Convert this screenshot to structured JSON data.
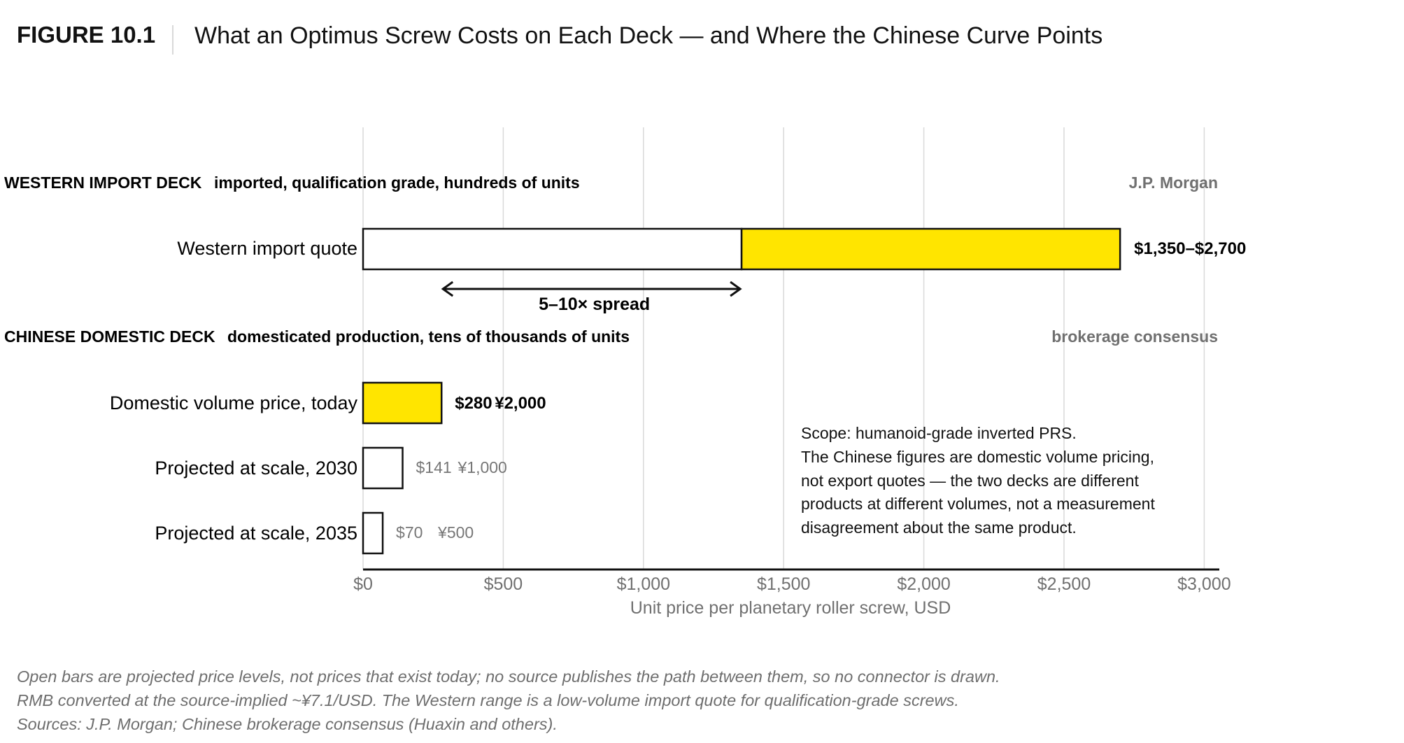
{
  "header": {
    "figure_label": "FIGURE 10.1",
    "title": "What an Optimus Screw Costs on Each Deck — and Where the Chinese Curve Points"
  },
  "chart_data": {
    "type": "bar",
    "orientation": "horizontal",
    "xlabel": "Unit price per planetary roller screw, USD",
    "xlim": [
      0,
      3050
    ],
    "x_ticks": [
      0,
      500,
      1000,
      1500,
      2000,
      2500,
      3000
    ],
    "x_tick_labels": [
      "$0",
      "$500",
      "$1,000",
      "$1,500",
      "$2,000",
      "$2,500",
      "$3,000"
    ],
    "grid": true,
    "decks": [
      {
        "title": "WESTERN IMPORT DECK",
        "subtitle": "imported, qualification grade, hundreds of units",
        "source": "J.P. Morgan",
        "bars": [
          {
            "label": "Western import quote",
            "kind": "range",
            "low": 1350,
            "high": 2700,
            "value_label": "$1,350–$2,700",
            "rmb_label": ""
          }
        ]
      },
      {
        "title": "CHINESE DOMESTIC DECK",
        "subtitle": "domesticated production, tens of thousands of units",
        "source": "brokerage consensus",
        "bars": [
          {
            "label": "Domestic volume price, today",
            "kind": "actual",
            "value": 280,
            "value_label": "$280",
            "rmb_label": "¥2,000"
          },
          {
            "label": "Projected at scale, 2030",
            "kind": "projected",
            "value": 141,
            "value_label": "$141",
            "rmb_label": "¥1,000"
          },
          {
            "label": "Projected at scale, 2035",
            "kind": "projected",
            "value": 70,
            "value_label": "$70",
            "rmb_label": "¥500"
          }
        ]
      }
    ],
    "annotations": {
      "spread_label": "5–10× spread",
      "spread_from": 280,
      "spread_to": 1350,
      "scope_note": [
        "Scope: humanoid-grade inverted PRS.",
        "The Chinese figures are domestic volume pricing,",
        "not export quotes — the two decks are different",
        "products at different volumes, not a measurement",
        "disagreement about the same product."
      ]
    },
    "colors": {
      "highlight": "#FFE500",
      "projected_fill": "#FFFFFF",
      "outline": "#111111",
      "grid": "#D9D9D9",
      "muted_text": "#777777"
    }
  },
  "footnotes": [
    "Open bars are projected price levels, not prices that exist today; no source publishes the path between them, so no connector is drawn.",
    "RMB converted at the source-implied ~¥7.1/USD. The Western range is a low-volume import quote for qualification-grade screws.",
    "Sources: J.P. Morgan; Chinese brokerage consensus (Huaxin and others)."
  ]
}
